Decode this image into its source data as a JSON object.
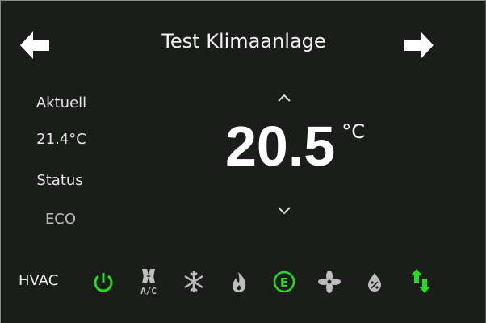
{
  "header": {
    "title": "Test Klimaanlage",
    "prev_icon": "arrow-left-icon",
    "next_icon": "arrow-right-icon"
  },
  "left": {
    "current_label": "Aktuell",
    "current_value": "21.4°C",
    "status_label": "Status",
    "status_value": "ECO"
  },
  "setpoint": {
    "value": "20.5",
    "unit": "°C"
  },
  "hvac": {
    "label": "HVAC",
    "modes": [
      {
        "icon": "power-icon",
        "active": true
      },
      {
        "icon": "ac-fan-icon",
        "label": "A/C",
        "active": false
      },
      {
        "icon": "snowflake-icon",
        "active": false
      },
      {
        "icon": "flame-icon",
        "active": false
      },
      {
        "icon": "eco-icon",
        "label": "E",
        "active": true
      },
      {
        "icon": "fan-icon",
        "active": false
      },
      {
        "icon": "humidity-drop-icon",
        "active": false
      },
      {
        "icon": "swap-arrows-icon",
        "active": true
      }
    ]
  },
  "colors": {
    "background": "#1a1d1a",
    "active": "#22dd22",
    "inactive": "#bdbdbd",
    "text": "#eeeeee"
  }
}
